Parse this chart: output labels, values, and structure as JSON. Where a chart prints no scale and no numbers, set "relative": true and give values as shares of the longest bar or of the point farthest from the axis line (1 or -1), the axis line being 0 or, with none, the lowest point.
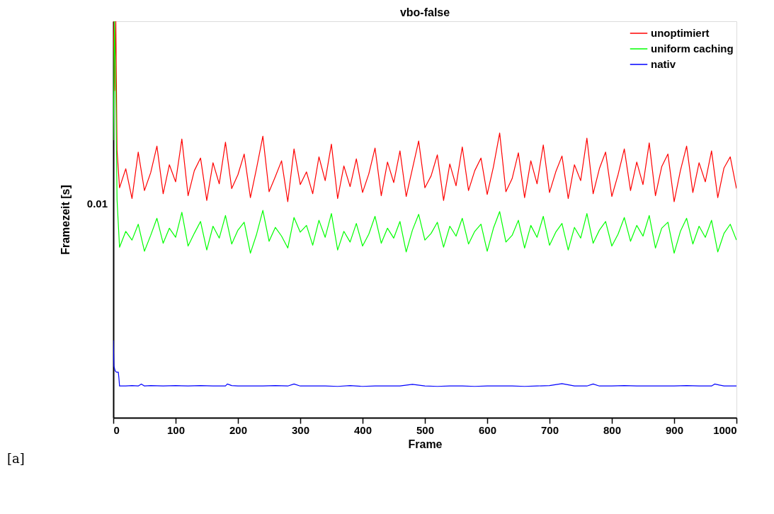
{
  "chart_data": {
    "type": "line",
    "title": "vbo-false",
    "xlabel": "Frame",
    "ylabel": "Framezeit [s]",
    "relative": true,
    "grid": false,
    "legend": "top right",
    "line_style": "solid",
    "marker": "none",
    "xlim": [
      0,
      1000
    ],
    "xticks": [
      0,
      100,
      200,
      300,
      400,
      500,
      600,
      700,
      800,
      900,
      1000
    ],
    "annotations": [
      "0.01",
      "[a]"
    ],
    "series": [
      {
        "name": "unoptimiert",
        "color": "#ff0000",
        "x": [
          0,
          2,
          4,
          6,
          10,
          20,
          30,
          40,
          50,
          60,
          70,
          80,
          90,
          100,
          110,
          120,
          130,
          140,
          150,
          160,
          170,
          180,
          190,
          200,
          210,
          220,
          230,
          240,
          250,
          260,
          270,
          280,
          290,
          300,
          310,
          320,
          330,
          340,
          350,
          360,
          370,
          380,
          390,
          400,
          410,
          420,
          430,
          440,
          450,
          460,
          470,
          480,
          490,
          500,
          510,
          520,
          530,
          540,
          550,
          560,
          570,
          580,
          590,
          600,
          610,
          620,
          630,
          640,
          650,
          660,
          670,
          680,
          690,
          700,
          710,
          720,
          730,
          740,
          750,
          760,
          770,
          780,
          790,
          800,
          810,
          820,
          830,
          840,
          850,
          860,
          870,
          880,
          890,
          900,
          910,
          920,
          930,
          940,
          950,
          960,
          970,
          980,
          990,
          1000
        ],
        "values": [
          1,
          0.825,
          1,
          0.675,
          0.58,
          0.628,
          0.553,
          0.67,
          0.573,
          0.618,
          0.685,
          0.565,
          0.638,
          0.595,
          0.703,
          0.56,
          0.623,
          0.655,
          0.548,
          0.643,
          0.59,
          0.695,
          0.578,
          0.613,
          0.665,
          0.555,
          0.63,
          0.71,
          0.57,
          0.608,
          0.648,
          0.545,
          0.678,
          0.588,
          0.62,
          0.565,
          0.658,
          0.598,
          0.69,
          0.553,
          0.635,
          0.583,
          0.653,
          0.568,
          0.615,
          0.68,
          0.56,
          0.645,
          0.593,
          0.673,
          0.558,
          0.628,
          0.698,
          0.58,
          0.61,
          0.663,
          0.548,
          0.64,
          0.585,
          0.683,
          0.573,
          0.623,
          0.655,
          0.563,
          0.633,
          0.718,
          0.57,
          0.603,
          0.668,
          0.555,
          0.648,
          0.59,
          0.688,
          0.568,
          0.62,
          0.66,
          0.553,
          0.638,
          0.598,
          0.705,
          0.565,
          0.628,
          0.67,
          0.558,
          0.613,
          0.678,
          0.573,
          0.645,
          0.588,
          0.693,
          0.56,
          0.633,
          0.665,
          0.545,
          0.623,
          0.685,
          0.568,
          0.643,
          0.595,
          0.673,
          0.555,
          0.63,
          0.658,
          0.578
        ]
      },
      {
        "name": "uniform caching",
        "color": "#00ff00",
        "x": [
          0,
          2,
          4,
          6,
          10,
          20,
          30,
          40,
          50,
          60,
          70,
          80,
          90,
          100,
          110,
          120,
          130,
          140,
          150,
          160,
          170,
          180,
          190,
          200,
          210,
          220,
          230,
          240,
          250,
          260,
          270,
          280,
          290,
          300,
          310,
          320,
          330,
          340,
          350,
          360,
          370,
          380,
          390,
          400,
          410,
          420,
          430,
          440,
          450,
          460,
          470,
          480,
          490,
          500,
          510,
          520,
          530,
          540,
          550,
          560,
          570,
          580,
          590,
          600,
          610,
          620,
          630,
          640,
          650,
          660,
          670,
          680,
          690,
          700,
          710,
          720,
          730,
          740,
          750,
          760,
          770,
          780,
          790,
          800,
          810,
          820,
          830,
          840,
          850,
          860,
          870,
          880,
          890,
          900,
          910,
          920,
          930,
          940,
          950,
          960,
          970,
          980,
          990,
          1000
        ],
        "values": [
          0.7,
          1,
          0.825,
          0.55,
          0.43,
          0.47,
          0.448,
          0.488,
          0.42,
          0.46,
          0.503,
          0.44,
          0.478,
          0.455,
          0.518,
          0.433,
          0.465,
          0.495,
          0.423,
          0.483,
          0.453,
          0.51,
          0.438,
          0.473,
          0.493,
          0.415,
          0.463,
          0.523,
          0.445,
          0.48,
          0.458,
          0.428,
          0.505,
          0.468,
          0.485,
          0.435,
          0.498,
          0.455,
          0.515,
          0.423,
          0.47,
          0.443,
          0.49,
          0.433,
          0.463,
          0.508,
          0.44,
          0.478,
          0.453,
          0.495,
          0.418,
          0.473,
          0.513,
          0.448,
          0.465,
          0.493,
          0.43,
          0.483,
          0.458,
          0.503,
          0.438,
          0.47,
          0.488,
          0.42,
          0.478,
          0.52,
          0.443,
          0.46,
          0.498,
          0.428,
          0.485,
          0.455,
          0.508,
          0.435,
          0.468,
          0.49,
          0.423,
          0.48,
          0.453,
          0.515,
          0.44,
          0.473,
          0.495,
          0.433,
          0.463,
          0.505,
          0.445,
          0.485,
          0.458,
          0.51,
          0.428,
          0.478,
          0.493,
          0.415,
          0.47,
          0.503,
          0.438,
          0.483,
          0.455,
          0.498,
          0.418,
          0.465,
          0.488,
          0.448
        ]
      },
      {
        "name": "nativ",
        "color": "#0000ff",
        "x": [
          0,
          1,
          3,
          5,
          8,
          9,
          10,
          20,
          30,
          40,
          45,
          50,
          60,
          80,
          100,
          120,
          140,
          160,
          180,
          183,
          190,
          200,
          220,
          240,
          260,
          280,
          290,
          300,
          320,
          340,
          360,
          380,
          400,
          420,
          440,
          460,
          480,
          500,
          520,
          540,
          560,
          580,
          600,
          620,
          640,
          660,
          680,
          700,
          720,
          740,
          760,
          770,
          780,
          800,
          820,
          840,
          860,
          880,
          900,
          920,
          940,
          960,
          965,
          980,
          1000
        ],
        "values": [
          0.195,
          0.13,
          0.118,
          0.115,
          0.115,
          0.1,
          0.08,
          0.08,
          0.081,
          0.08,
          0.085,
          0.08,
          0.081,
          0.08,
          0.081,
          0.08,
          0.081,
          0.08,
          0.08,
          0.085,
          0.081,
          0.08,
          0.08,
          0.08,
          0.081,
          0.08,
          0.085,
          0.08,
          0.08,
          0.08,
          0.079,
          0.081,
          0.079,
          0.08,
          0.08,
          0.08,
          0.084,
          0.08,
          0.079,
          0.08,
          0.08,
          0.079,
          0.08,
          0.08,
          0.08,
          0.079,
          0.08,
          0.081,
          0.086,
          0.08,
          0.08,
          0.085,
          0.08,
          0.08,
          0.081,
          0.08,
          0.08,
          0.08,
          0.08,
          0.081,
          0.08,
          0.08,
          0.085,
          0.08,
          0.08
        ]
      }
    ]
  }
}
